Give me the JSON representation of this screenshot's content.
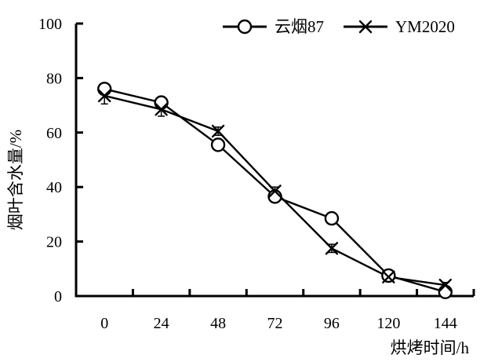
{
  "chart_data": {
    "type": "line",
    "title": "",
    "xlabel": "烘烤时间/h",
    "ylabel": "烟叶含水量/%",
    "x": [
      0,
      24,
      48,
      72,
      96,
      120,
      144
    ],
    "ylim": [
      0,
      100
    ],
    "yticks": [
      0,
      20,
      40,
      60,
      80,
      100
    ],
    "grid": false,
    "legend_position": "top",
    "series": [
      {
        "name": "云烟87",
        "marker": "circle",
        "values": [
          76,
          71,
          55.5,
          36.5,
          28.5,
          7.5,
          1.5
        ],
        "errors": [
          2,
          1.5,
          1.5,
          1.5,
          1,
          1,
          1
        ]
      },
      {
        "name": "YM2020",
        "marker": "x",
        "values": [
          73.5,
          68.5,
          60.5,
          38.5,
          17.5,
          7,
          4
        ],
        "errors": [
          3,
          2.5,
          1.5,
          1.5,
          1.5,
          1.5,
          1
        ]
      }
    ],
    "colors": {
      "line": "#000000",
      "marker_fill": "#ffffff",
      "text": "#000000",
      "background": "#ffffff"
    }
  }
}
